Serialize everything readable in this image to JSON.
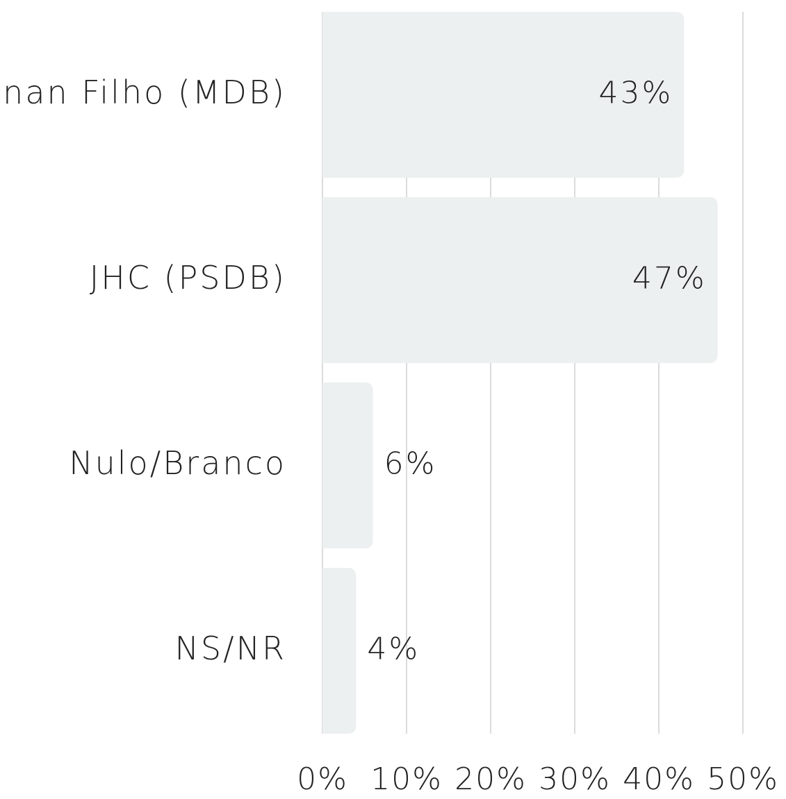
{
  "chart_data": {
    "type": "bar",
    "orientation": "horizontal",
    "categories": [
      "Renan Filho (MDB)",
      "JHC (PSDB)",
      "Nulo/Branco",
      "NS/NR"
    ],
    "values": [
      43,
      47,
      6,
      4
    ],
    "value_labels": [
      "43%",
      "47%",
      "6%",
      "4%"
    ],
    "color": "#edf0f0",
    "xlim": [
      0,
      50
    ],
    "xticks": [
      {
        "value": 0,
        "label": "0%"
      },
      {
        "value": 10,
        "label": "10%"
      },
      {
        "value": 20,
        "label": "20%"
      },
      {
        "value": 30,
        "label": "30%"
      },
      {
        "value": 40,
        "label": "40%"
      },
      {
        "value": 50,
        "label": "50%"
      }
    ],
    "grid": true
  }
}
